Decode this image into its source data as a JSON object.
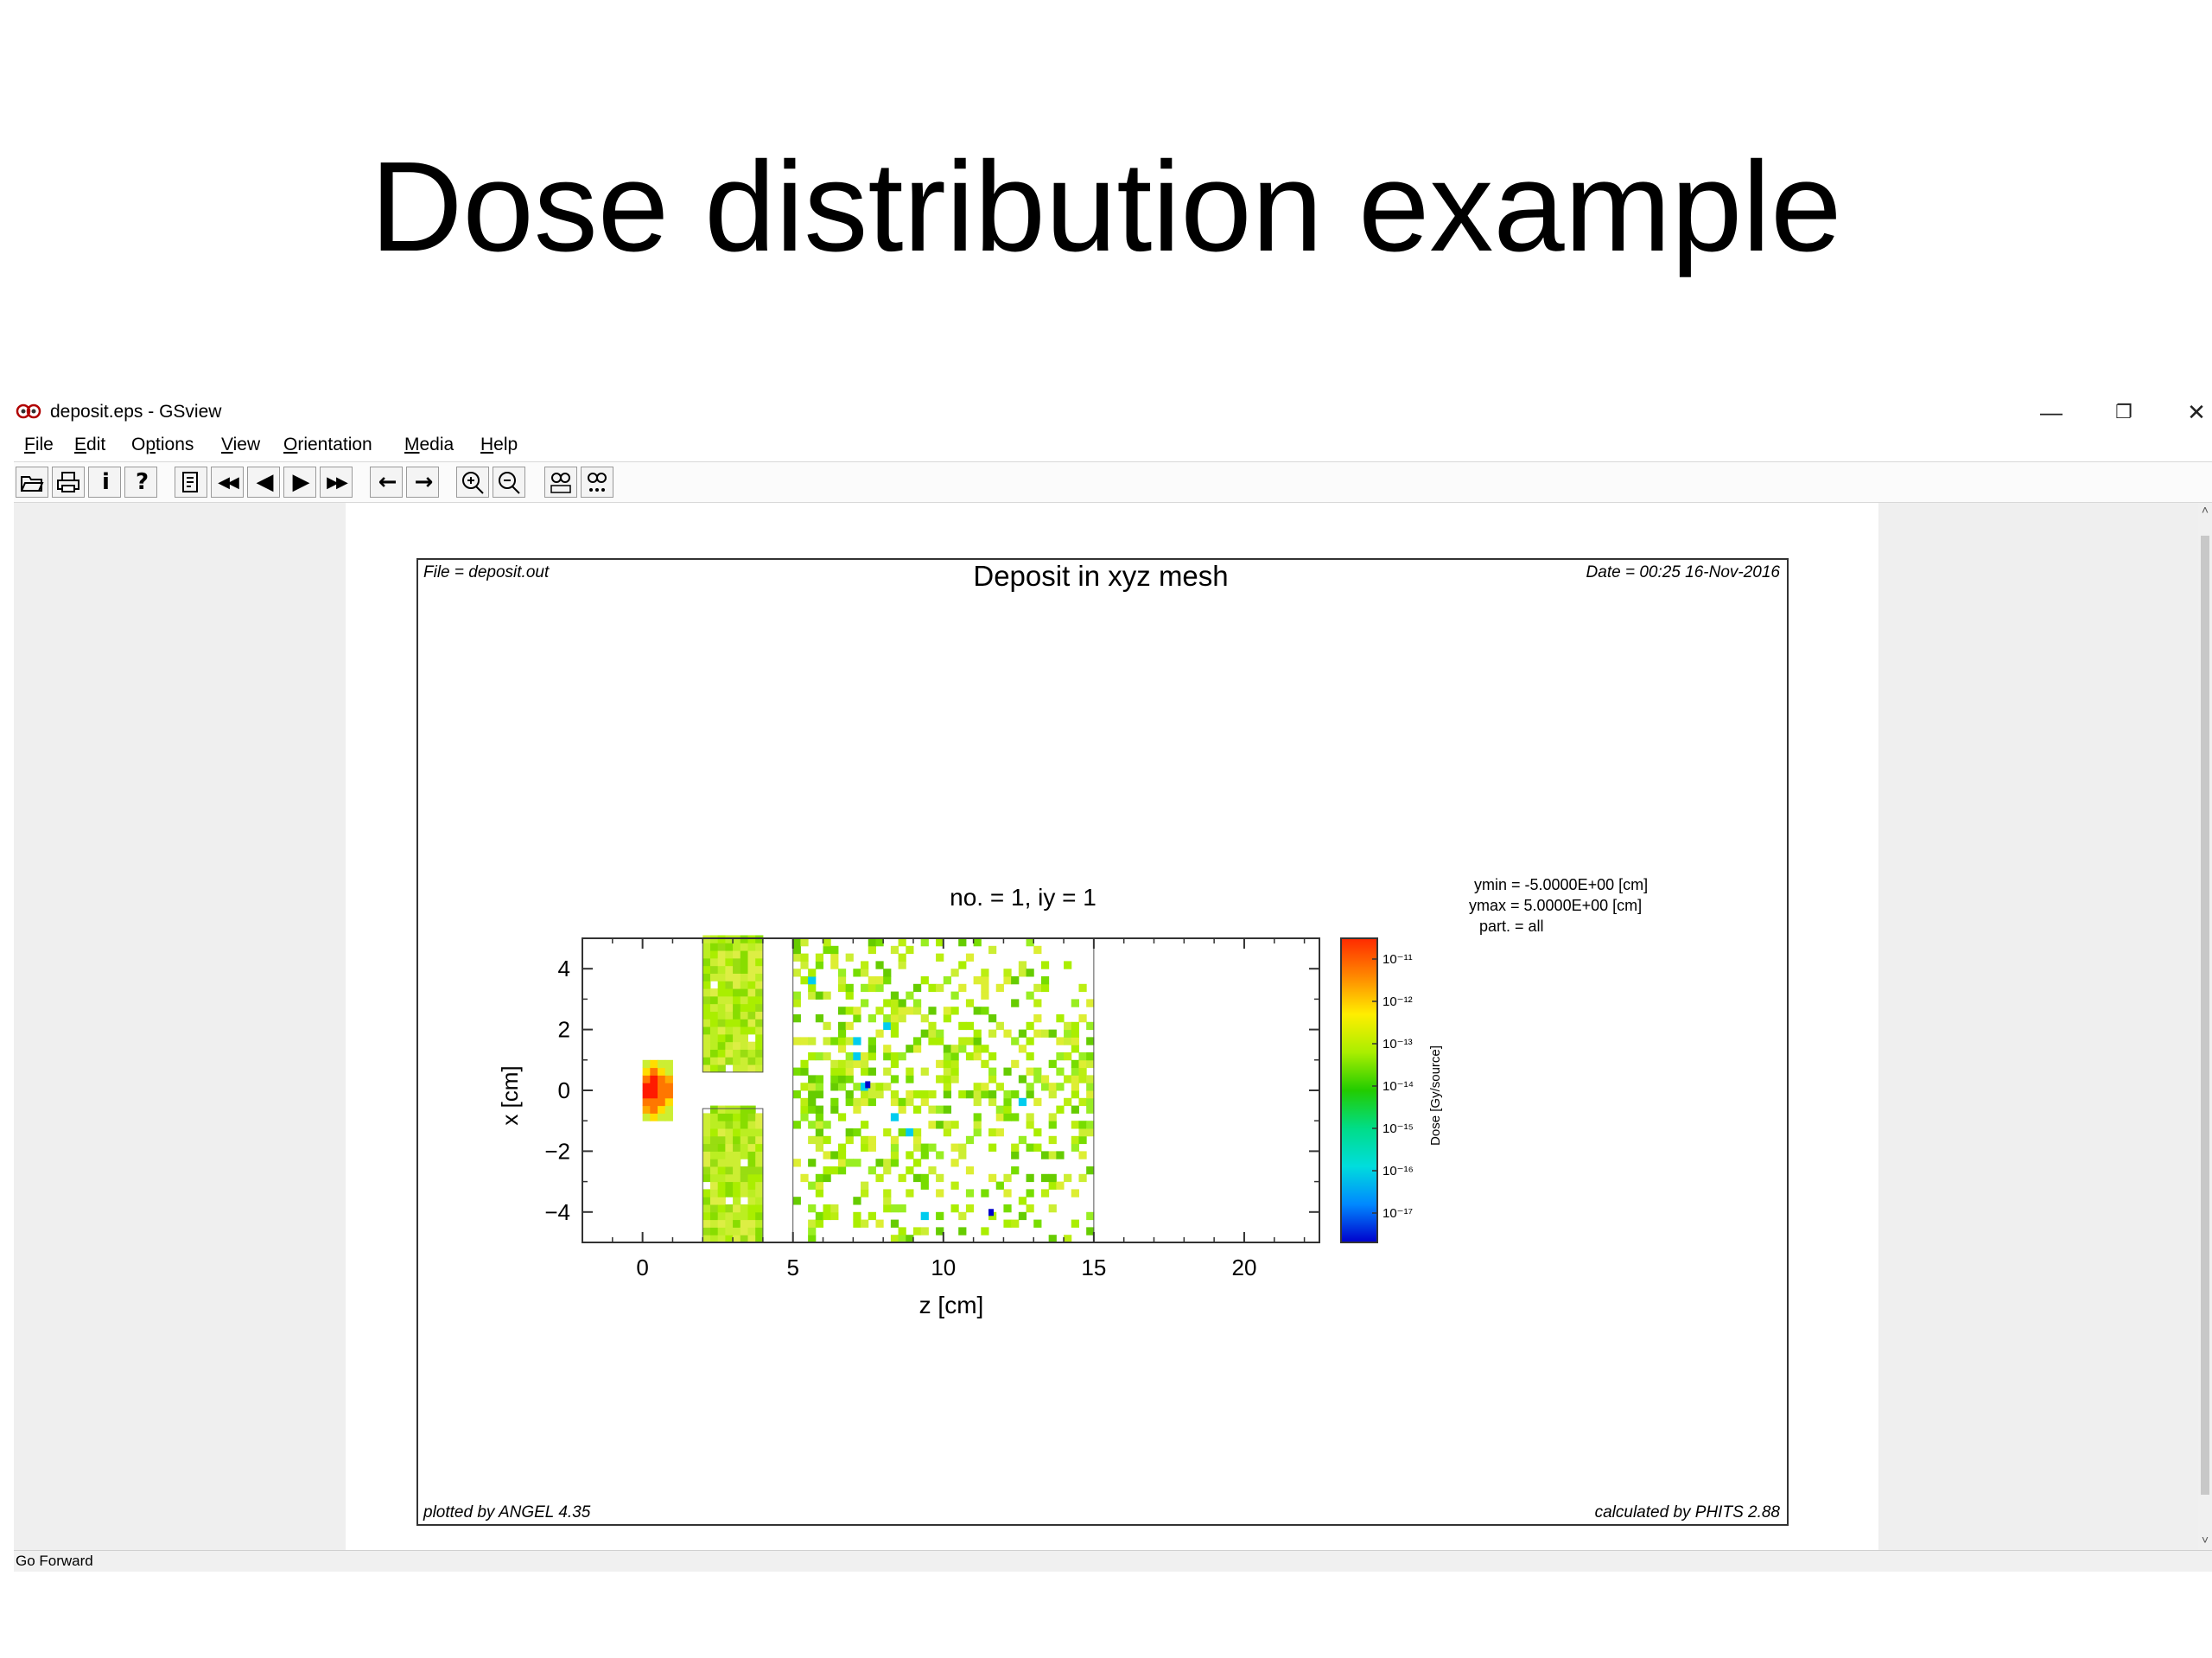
{
  "slide": {
    "title": "Dose distribution example"
  },
  "window": {
    "title": "deposit.eps - GSview",
    "controls": {
      "minimize": "—",
      "restore": "❐",
      "close": "✕"
    }
  },
  "menu": [
    {
      "label": "File",
      "underline": "F"
    },
    {
      "label": "Edit",
      "underline": "E"
    },
    {
      "label": "Options",
      "underline": "p"
    },
    {
      "label": "View",
      "underline": "V"
    },
    {
      "label": "Orientation",
      "underline": "O"
    },
    {
      "label": "Media",
      "underline": "M"
    },
    {
      "label": "Help",
      "underline": "H"
    }
  ],
  "toolbar": {
    "buttons": [
      {
        "name": "open-file-icon"
      },
      {
        "name": "print-icon"
      },
      {
        "name": "info-icon",
        "glyph": "i"
      },
      {
        "name": "help-icon",
        "glyph": "?"
      },
      {
        "name": "goto-page-icon"
      },
      {
        "name": "first-page-icon",
        "glyph": "◀◀"
      },
      {
        "name": "previous-page-icon",
        "glyph": "◀"
      },
      {
        "name": "next-page-icon",
        "glyph": "▶"
      },
      {
        "name": "last-page-icon",
        "glyph": "▶▶"
      },
      {
        "name": "go-back-icon",
        "glyph": "←"
      },
      {
        "name": "go-forward-icon",
        "glyph": "→"
      },
      {
        "name": "zoom-in-icon"
      },
      {
        "name": "zoom-out-icon"
      },
      {
        "name": "magnify-abc-icon"
      },
      {
        "name": "magnify-dots-icon"
      }
    ]
  },
  "status": {
    "text": "Go Forward"
  },
  "plot": {
    "file_label": "File = deposit.out",
    "title": "Deposit in xyz mesh",
    "date_label": "Date = 00:25 16-Nov-2016",
    "subtitle": "no. =  1,  iy =  1",
    "info": [
      "ymin  =  -5.0000E+00 [cm]",
      "ymax  =   5.0000E+00 [cm]",
      "part. = all"
    ],
    "footer_left": "plotted by ANGEL 4.35",
    "footer_right": "calculated by PHITS 2.88",
    "colorbar_label": "Dose [Gy/source]",
    "colors": {
      "frame": "#333333",
      "colormap": [
        "#ff2a00",
        "#ff8800",
        "#ffee00",
        "#aaee00",
        "#22cc00",
        "#00dd88",
        "#00dddd",
        "#0088ff",
        "#0000cc"
      ]
    }
  },
  "chart_data": {
    "type": "heatmap",
    "title": "no. =  1,  iy =  1",
    "xlabel": "z [cm]",
    "ylabel": "x [cm]",
    "xlim": [
      -2,
      22.5
    ],
    "ylim": [
      -5,
      5
    ],
    "x_ticks": [
      0,
      5,
      10,
      15,
      20
    ],
    "y_ticks": [
      4,
      2,
      0,
      -2,
      -4
    ],
    "x_tick_labels": [
      "0",
      "5",
      "10",
      "15",
      "20"
    ],
    "y_tick_labels": [
      "4",
      "2",
      "0",
      "−2",
      "−4"
    ],
    "colorbar": {
      "label": "Dose [Gy/source]",
      "scale": "log",
      "range": [
        1e-17,
        1e-11
      ],
      "tick_labels": [
        "10⁻¹¹",
        "10⁻¹²",
        "10⁻¹³",
        "10⁻¹⁴",
        "10⁻¹⁵",
        "10⁻¹⁶",
        "10⁻¹⁷"
      ]
    },
    "regions": [
      {
        "name": "source",
        "z": [
          0,
          1
        ],
        "x": [
          -1,
          1
        ],
        "dose_log10": -11,
        "fill": "dense"
      },
      {
        "name": "slab-upper",
        "z": [
          2,
          4
        ],
        "x": [
          0.6,
          5
        ],
        "dose_log10": -13.2,
        "fill": "dense"
      },
      {
        "name": "slab-lower",
        "z": [
          2,
          4
        ],
        "x": [
          -5,
          -0.6
        ],
        "dose_log10": -13.2,
        "fill": "dense"
      },
      {
        "name": "scatter-region",
        "z": [
          5,
          15
        ],
        "x": [
          -5,
          5
        ],
        "dose_log10": -13.8,
        "fill": "sparse"
      }
    ]
  }
}
